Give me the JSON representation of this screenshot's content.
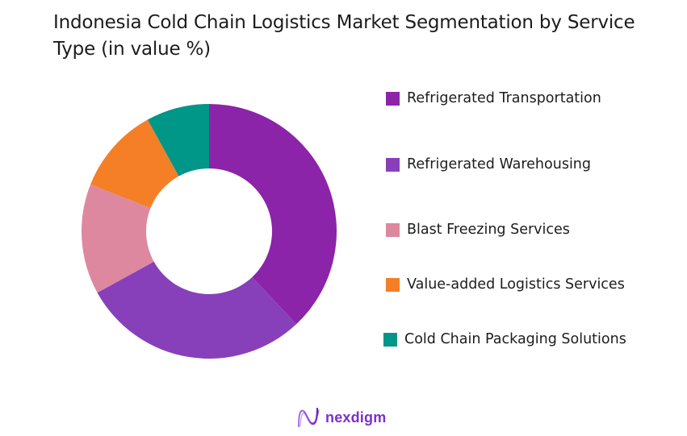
{
  "title": "Indonesia Cold Chain Logistics Market Segmentation by Service Type (in value %)",
  "chart_data": {
    "type": "pie",
    "subtype": "donut",
    "title": "Indonesia Cold Chain Logistics Market Segmentation by Service Type (in value %)",
    "categories": [
      "Refrigerated Transportation",
      "Refrigerated Warehousing",
      "Blast Freezing Services",
      "Value-added Logistics Services",
      "Cold Chain Packaging Solutions"
    ],
    "values": [
      38,
      29,
      14,
      11,
      8
    ],
    "colors": [
      "#8B24A8",
      "#8740BA",
      "#DE88A0",
      "#F47F27",
      "#009688"
    ],
    "unit": "%",
    "legend_position": "right",
    "start_angle": "top, clockwise"
  },
  "legend": {
    "items": [
      {
        "label": "Refrigerated Transportation",
        "color": "#8B24A8"
      },
      {
        "label": "Refrigerated Warehousing",
        "color": "#8740BA"
      },
      {
        "label": "Blast Freezing Services",
        "color": "#DE88A0"
      },
      {
        "label": "Value-added Logistics Services",
        "color": "#F47F27"
      },
      {
        "label": "Cold Chain Packaging Solutions",
        "color": "#009688"
      }
    ]
  },
  "branding": {
    "logo_text": "nexdigm",
    "logo_icon": "nexdigm-wave-icon"
  }
}
